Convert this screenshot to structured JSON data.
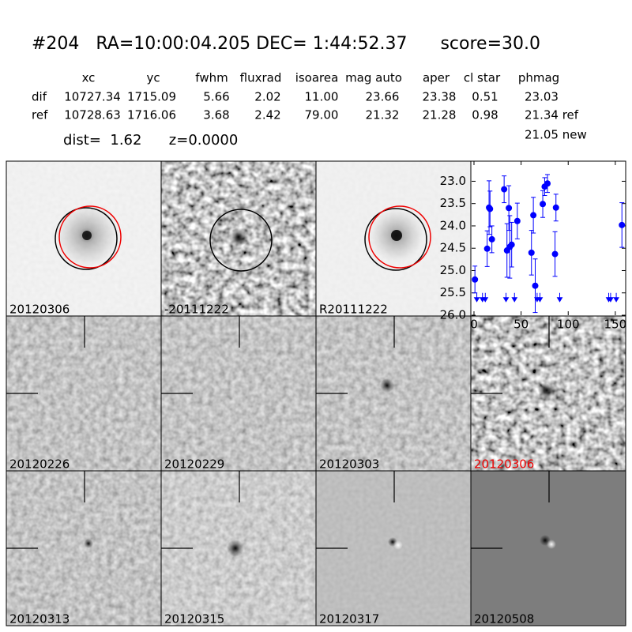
{
  "header": {
    "title": "#204   RA=10:00:04.205 DEC= 1:44:52.37      score=30.0"
  },
  "table": {
    "columns": [
      "xc",
      "yc",
      "fwhm",
      "fluxrad",
      "isoarea",
      "mag auto",
      "aper",
      "cl star",
      "phmag"
    ],
    "rows": [
      [
        "dif",
        "10727.34",
        "1715.09",
        "5.66",
        "2.02",
        "11.00",
        "23.66",
        "23.38",
        "0.51",
        "23.03"
      ],
      [
        "ref",
        "10728.63",
        "1716.06",
        "3.68",
        "2.42",
        "79.00",
        "21.32",
        "21.28",
        "0.98",
        "21.34 ref"
      ]
    ],
    "extra": "21.05 new"
  },
  "dist_line": "dist=  1.62      z=0.0000",
  "stamps": [
    "20120306",
    "-20111222",
    "R20111222",
    "20120226",
    "20120229",
    "20120303",
    "20120306",
    "20120313",
    "20120315",
    "20120317",
    "20120508"
  ],
  "chart_data": {
    "type": "scatter",
    "xlim": [
      -2.5,
      161
    ],
    "ylim": [
      26.0,
      22.55
    ],
    "xticks": [
      0,
      50,
      100,
      150
    ],
    "yticks": [
      {
        "value": 23.0,
        "label": "23.0"
      },
      {
        "value": 23.5,
        "label": "23.5"
      },
      {
        "value": 24.0,
        "label": "24.0"
      },
      {
        "value": 24.5,
        "label": "24.5"
      },
      {
        "value": 25.0,
        "label": "25.0"
      },
      {
        "value": 25.5,
        "label": "25.5"
      },
      {
        "value": 26.0,
        "label": "26.0"
      }
    ],
    "series": [
      {
        "color": "#0000ff",
        "marker": "circle",
        "x": [
          1,
          14,
          16,
          17,
          19,
          32,
          35,
          37,
          38,
          40,
          46,
          61,
          63,
          65,
          73,
          75,
          78,
          86,
          87,
          157
        ],
        "values": [
          25.2,
          24.51,
          23.59,
          23.62,
          24.3,
          23.18,
          24.55,
          23.6,
          24.47,
          24.42,
          23.89,
          24.6,
          23.76,
          25.34,
          23.51,
          23.12,
          23.05,
          24.63,
          23.59,
          23.98
        ],
        "errors": [
          0.3,
          0.4,
          0.6,
          0.4,
          0.3,
          0.3,
          0.6,
          0.5,
          0.7,
          0.5,
          0.4,
          0.5,
          0.4,
          0.6,
          0.3,
          0.2,
          0.2,
          0.5,
          0.3,
          0.5
        ]
      },
      {
        "color": "#0000ff",
        "marker": "arrow",
        "x": [
          3,
          9,
          12,
          34,
          43,
          67,
          70,
          91,
          143,
          145,
          151
        ],
        "values": [
          25.5,
          25.5,
          25.5,
          25.5,
          25.5,
          25.5,
          25.5,
          25.5,
          25.5,
          25.5,
          25.5
        ]
      }
    ]
  }
}
